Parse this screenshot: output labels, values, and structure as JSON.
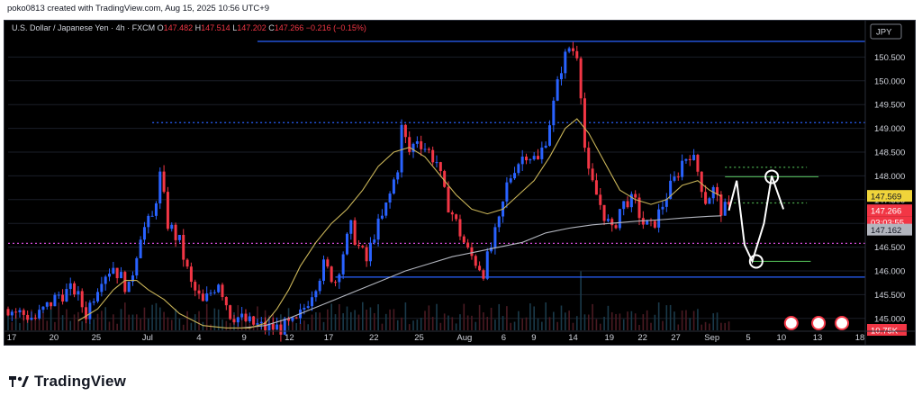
{
  "header": {
    "credit": "poko0813 created with TradingView.com, Aug 15, 2025 10:56 UTC+9"
  },
  "legend": {
    "symbol": "U.S. Dollar / Japanese Yen · 4h · FXCM",
    "o_label": "O",
    "o_value": "147.482",
    "h_label": "H",
    "h_value": "147.514",
    "l_label": "L",
    "l_value": "147.202",
    "c_label": "C",
    "c_value": "147.266",
    "change": "−0.216 (−0.15%)"
  },
  "currency_badge": "JPY",
  "volume_badge": "10.75K",
  "brand": {
    "name": "TradingView"
  },
  "colors": {
    "up": "#2962ff",
    "down": "#f23645",
    "ma_fast": "#c9b458",
    "ma_slow": "#b2b5be",
    "hline_blue": "#2962ff",
    "hline_green": "#4caf50"
  },
  "chart_data": {
    "type": "candlestick",
    "ylim": [
      144.75,
      151.0
    ],
    "y_ticks": [
      "150.500",
      "150.000",
      "149.500",
      "149.000",
      "148.500",
      "148.000",
      "147.500",
      "147.000",
      "146.500",
      "146.000",
      "145.500",
      "145.000"
    ],
    "x_ticks": [
      "17",
      "20",
      "25",
      "Jul",
      "4",
      "9",
      "12",
      "17",
      "22",
      "25",
      "Aug",
      "6",
      "9",
      "14",
      "19",
      "22",
      "27",
      "Sep",
      "5",
      "10",
      "13",
      "18"
    ],
    "price_labels": [
      {
        "value": "147.569",
        "kind": "ma_fast"
      },
      {
        "value": "147.266",
        "kind": "last"
      },
      {
        "value": "03:03:55",
        "kind": "countdown"
      },
      {
        "value": "147.162",
        "kind": "ma_slow"
      }
    ],
    "horizontal_levels": [
      {
        "value": 150.83,
        "style": "solid",
        "color": "blue"
      },
      {
        "value": 149.12,
        "style": "dotted",
        "color": "blue"
      },
      {
        "value": 148.18,
        "style": "dotted",
        "color": "green"
      },
      {
        "value": 147.98,
        "style": "solid",
        "color": "green"
      },
      {
        "value": 147.43,
        "style": "dotted",
        "color": "green"
      },
      {
        "value": 146.58,
        "style": "dotted",
        "color": "magenta"
      },
      {
        "value": 146.2,
        "style": "solid",
        "color": "green"
      },
      {
        "value": 145.87,
        "style": "solid",
        "color": "blue"
      }
    ],
    "price_path": [
      [
        0,
        145.2
      ],
      [
        7,
        145.0
      ],
      [
        13,
        145.5
      ],
      [
        17,
        145.6
      ],
      [
        20,
        145.1
      ],
      [
        24,
        145.9
      ],
      [
        27,
        146.1
      ],
      [
        31,
        145.6
      ],
      [
        34,
        146.8
      ],
      [
        37,
        147.1
      ],
      [
        39,
        148.0
      ],
      [
        41,
        147.0
      ],
      [
        44,
        146.6
      ],
      [
        47,
        145.7
      ],
      [
        50,
        145.3
      ],
      [
        54,
        145.8
      ],
      [
        57,
        145.1
      ],
      [
        62,
        144.9
      ],
      [
        66,
        144.8
      ],
      [
        70,
        144.8
      ],
      [
        74,
        144.9
      ],
      [
        77,
        145.4
      ],
      [
        81,
        146.1
      ],
      [
        84,
        145.8
      ],
      [
        86,
        146.4
      ],
      [
        88,
        146.9
      ],
      [
        90,
        146.5
      ],
      [
        92,
        146.2
      ],
      [
        94,
        146.8
      ],
      [
        96,
        147.1
      ],
      [
        98,
        147.6
      ],
      [
        100,
        148.2
      ],
      [
        101,
        149.0
      ],
      [
        103,
        148.5
      ],
      [
        105,
        148.8
      ],
      [
        107,
        148.6
      ],
      [
        110,
        148.3
      ],
      [
        112,
        147.6
      ],
      [
        114,
        147.2
      ],
      [
        116,
        146.8
      ],
      [
        118,
        146.4
      ],
      [
        120,
        146.2
      ],
      [
        122,
        146.0
      ],
      [
        124,
        146.5
      ],
      [
        126,
        147.0
      ],
      [
        128,
        147.8
      ],
      [
        130,
        148.2
      ],
      [
        133,
        148.5
      ],
      [
        136,
        148.3
      ],
      [
        138,
        148.8
      ],
      [
        140,
        149.5
      ],
      [
        142,
        150.3
      ],
      [
        144,
        150.7
      ],
      [
        146,
        150.6
      ],
      [
        147,
        149.8
      ],
      [
        148,
        148.6
      ],
      [
        149,
        148.0
      ],
      [
        151,
        147.6
      ],
      [
        153,
        147.2
      ],
      [
        155,
        146.8
      ],
      [
        157,
        147.3
      ],
      [
        159,
        147.5
      ],
      [
        161,
        147.4
      ],
      [
        163,
        147.0
      ],
      [
        165,
        146.9
      ],
      [
        167,
        147.2
      ],
      [
        169,
        147.6
      ],
      [
        171,
        147.9
      ],
      [
        173,
        148.3
      ],
      [
        175,
        148.5
      ],
      [
        177,
        148.1
      ],
      [
        179,
        147.5
      ],
      [
        181,
        147.7
      ],
      [
        183,
        147.3
      ],
      [
        185,
        147.27
      ]
    ],
    "ma_fast_path": [
      [
        18,
        144.95
      ],
      [
        23,
        145.2
      ],
      [
        27,
        145.6
      ],
      [
        30,
        145.8
      ],
      [
        33,
        145.8
      ],
      [
        36,
        145.6
      ],
      [
        40,
        145.4
      ],
      [
        44,
        145.1
      ],
      [
        50,
        144.85
      ],
      [
        56,
        144.8
      ],
      [
        62,
        144.8
      ],
      [
        66,
        144.9
      ],
      [
        69,
        145.2
      ],
      [
        72,
        145.6
      ],
      [
        75,
        146.1
      ],
      [
        79,
        146.6
      ],
      [
        83,
        147.0
      ],
      [
        87,
        147.3
      ],
      [
        91,
        147.7
      ],
      [
        95,
        148.2
      ],
      [
        99,
        148.5
      ],
      [
        103,
        148.6
      ],
      [
        107,
        148.4
      ],
      [
        111,
        148.0
      ],
      [
        115,
        147.6
      ],
      [
        119,
        147.3
      ],
      [
        123,
        147.2
      ],
      [
        127,
        147.3
      ],
      [
        131,
        147.6
      ],
      [
        135,
        147.9
      ],
      [
        139,
        148.4
      ],
      [
        143,
        149.0
      ],
      [
        146,
        149.2
      ],
      [
        149,
        148.9
      ],
      [
        153,
        148.3
      ],
      [
        157,
        147.7
      ],
      [
        161,
        147.5
      ],
      [
        165,
        147.4
      ],
      [
        169,
        147.5
      ],
      [
        173,
        147.8
      ],
      [
        177,
        147.9
      ],
      [
        180,
        147.7
      ],
      [
        183,
        147.57
      ]
    ],
    "ma_slow_path": [
      [
        60,
        144.8
      ],
      [
        66,
        144.85
      ],
      [
        72,
        145.0
      ],
      [
        78,
        145.2
      ],
      [
        84,
        145.4
      ],
      [
        90,
        145.6
      ],
      [
        96,
        145.8
      ],
      [
        102,
        146.0
      ],
      [
        108,
        146.15
      ],
      [
        114,
        146.3
      ],
      [
        120,
        146.4
      ],
      [
        126,
        146.5
      ],
      [
        132,
        146.6
      ],
      [
        138,
        146.8
      ],
      [
        144,
        146.9
      ],
      [
        150,
        146.97
      ],
      [
        156,
        147.01
      ],
      [
        162,
        147.05
      ],
      [
        168,
        147.08
      ],
      [
        174,
        147.12
      ],
      [
        180,
        147.15
      ],
      [
        183,
        147.16
      ]
    ],
    "projection_path": [
      [
        185,
        147.27
      ],
      [
        187,
        147.9
      ],
      [
        189,
        146.55
      ],
      [
        191,
        146.2
      ],
      [
        194,
        147.0
      ],
      [
        196,
        148.0
      ],
      [
        199,
        147.3
      ]
    ],
    "projection_circles": [
      [
        196,
        147.98
      ],
      [
        192,
        146.2
      ]
    ]
  }
}
